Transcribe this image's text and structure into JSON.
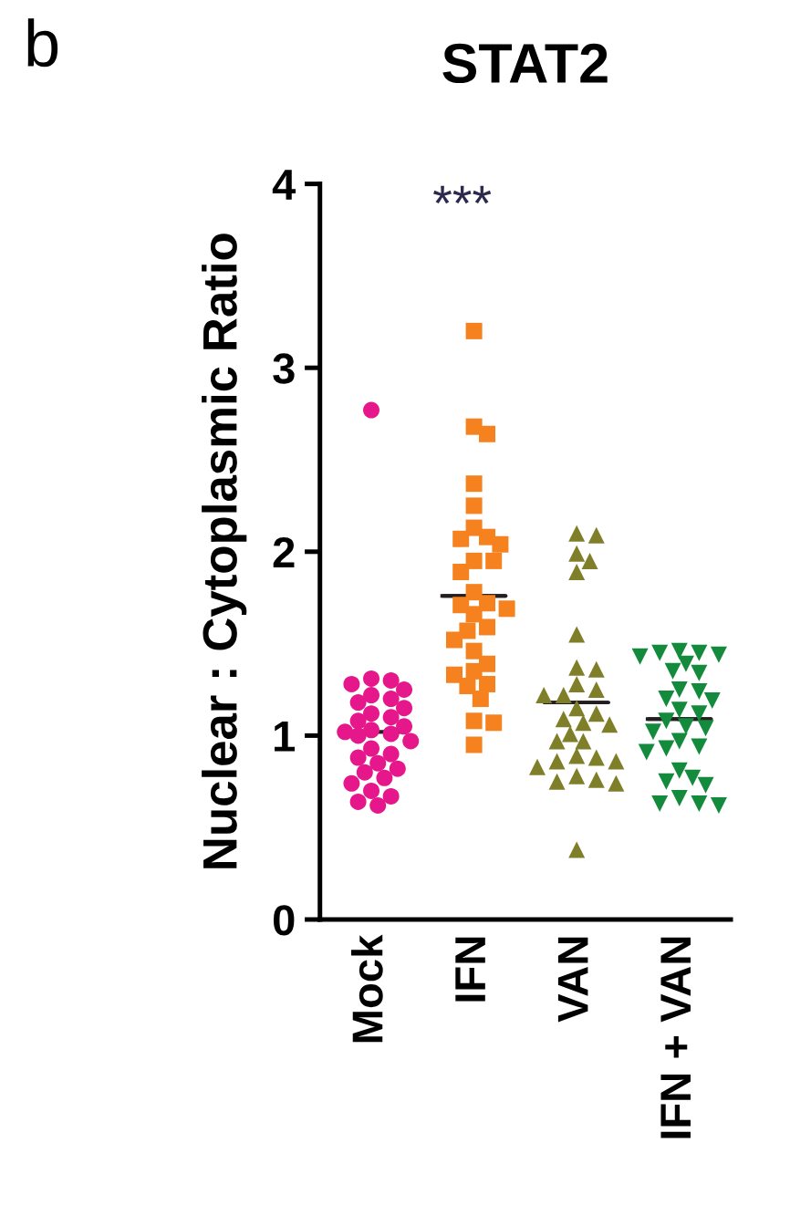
{
  "chart_data": {
    "type": "scatter",
    "title": "STAT2",
    "ylabel": "Nuclear : Cytoplasmic Ratio",
    "categories": [
      "Mock",
      "IFN",
      "VAN",
      "IFN + VAN"
    ],
    "ylim": [
      0,
      4
    ],
    "yticks": [
      0,
      1,
      2,
      3,
      4
    ],
    "grid": false,
    "legend": false,
    "annotations": [
      "b",
      "***"
    ],
    "series": [
      {
        "marker": "circle",
        "color": "#e6178a",
        "x": [
          "Mock",
          "Mock",
          "Mock",
          "Mock",
          "Mock",
          "Mock",
          "Mock",
          "Mock",
          "Mock",
          "Mock",
          "Mock",
          "Mock",
          "Mock",
          "Mock",
          "Mock",
          "Mock",
          "Mock",
          "Mock",
          "Mock",
          "Mock",
          "Mock",
          "Mock",
          "Mock",
          "Mock",
          "Mock",
          "Mock",
          "Mock",
          "Mock",
          "Mock",
          "Mock"
        ],
        "values": [
          2.77,
          1.31,
          1.3,
          1.28,
          1.25,
          1.22,
          1.2,
          1.18,
          1.15,
          1.12,
          1.1,
          1.08,
          1.05,
          1.03,
          1.02,
          1.01,
          1.0,
          0.97,
          0.93,
          0.9,
          0.88,
          0.85,
          0.82,
          0.8,
          0.77,
          0.74,
          0.7,
          0.67,
          0.64,
          0.62
        ]
      },
      {
        "marker": "square",
        "color": "#f5821f",
        "x": [
          "IFN",
          "IFN",
          "IFN",
          "IFN",
          "IFN",
          "IFN",
          "IFN",
          "IFN",
          "IFN",
          "IFN",
          "IFN",
          "IFN",
          "IFN",
          "IFN",
          "IFN",
          "IFN",
          "IFN",
          "IFN",
          "IFN",
          "IFN",
          "IFN",
          "IFN",
          "IFN",
          "IFN",
          "IFN",
          "IFN",
          "IFN",
          "IFN",
          "IFN",
          "IFN"
        ],
        "values": [
          3.2,
          2.68,
          2.64,
          2.37,
          2.25,
          2.13,
          2.07,
          2.04,
          2.08,
          1.95,
          1.95,
          1.89,
          1.78,
          1.72,
          1.69,
          1.71,
          1.66,
          1.59,
          1.57,
          1.52,
          1.46,
          1.39,
          1.35,
          1.28,
          1.33,
          1.27,
          1.2,
          1.08,
          1.07,
          0.95
        ]
      },
      {
        "marker": "triangle",
        "color": "#7f7f2a",
        "x": [
          "VAN",
          "VAN",
          "VAN",
          "VAN",
          "VAN",
          "VAN",
          "VAN",
          "VAN",
          "VAN",
          "VAN",
          "VAN",
          "VAN",
          "VAN",
          "VAN",
          "VAN",
          "VAN",
          "VAN",
          "VAN",
          "VAN",
          "VAN",
          "VAN",
          "VAN",
          "VAN",
          "VAN",
          "VAN",
          "VAN",
          "VAN",
          "VAN",
          "VAN",
          "VAN"
        ],
        "values": [
          2.1,
          2.09,
          1.99,
          1.95,
          1.89,
          1.55,
          1.37,
          1.36,
          1.28,
          1.25,
          1.22,
          1.22,
          1.12,
          1.09,
          1.07,
          1.06,
          1.01,
          0.97,
          0.97,
          0.88,
          0.86,
          0.89,
          0.86,
          0.83,
          0.78,
          0.75,
          0.74,
          0.76,
          0.38,
          1.15
        ]
      },
      {
        "marker": "triangle_down",
        "color": "#138a3c",
        "x": [
          "IFN + VAN",
          "IFN + VAN",
          "IFN + VAN",
          "IFN + VAN",
          "IFN + VAN",
          "IFN + VAN",
          "IFN + VAN",
          "IFN + VAN",
          "IFN + VAN",
          "IFN + VAN",
          "IFN + VAN",
          "IFN + VAN",
          "IFN + VAN",
          "IFN + VAN",
          "IFN + VAN",
          "IFN + VAN",
          "IFN + VAN",
          "IFN + VAN",
          "IFN + VAN",
          "IFN + VAN",
          "IFN + VAN",
          "IFN + VAN",
          "IFN + VAN",
          "IFN + VAN",
          "IFN + VAN",
          "IFN + VAN",
          "IFN + VAN",
          "IFN + VAN",
          "IFN + VAN",
          "IFN + VAN"
        ],
        "values": [
          1.46,
          1.45,
          1.45,
          1.44,
          1.43,
          1.39,
          1.35,
          1.34,
          1.25,
          1.2,
          1.19,
          1.24,
          1.14,
          1.12,
          1.05,
          1.04,
          1.02,
          0.97,
          0.94,
          0.91,
          0.93,
          0.81,
          0.77,
          0.75,
          0.73,
          0.66,
          0.63,
          0.63,
          0.62,
          1.08
        ]
      },
      {
        "type": "box",
        "color": "#231f20",
        "boxes": [
          {
            "low": 1.02,
            "q1": 1.02,
            "median": 1.02,
            "q3": 1.02,
            "high": 1.02
          },
          {
            "low": 1.76,
            "q1": 1.76,
            "median": 1.76,
            "q3": 1.76,
            "high": 1.76
          },
          {
            "low": 1.18,
            "q1": 1.18,
            "median": 1.18,
            "q3": 1.18,
            "high": 1.18
          },
          {
            "low": 1.09,
            "q1": 1.09,
            "median": 1.09,
            "q3": 1.09,
            "high": 1.09
          }
        ]
      }
    ]
  }
}
